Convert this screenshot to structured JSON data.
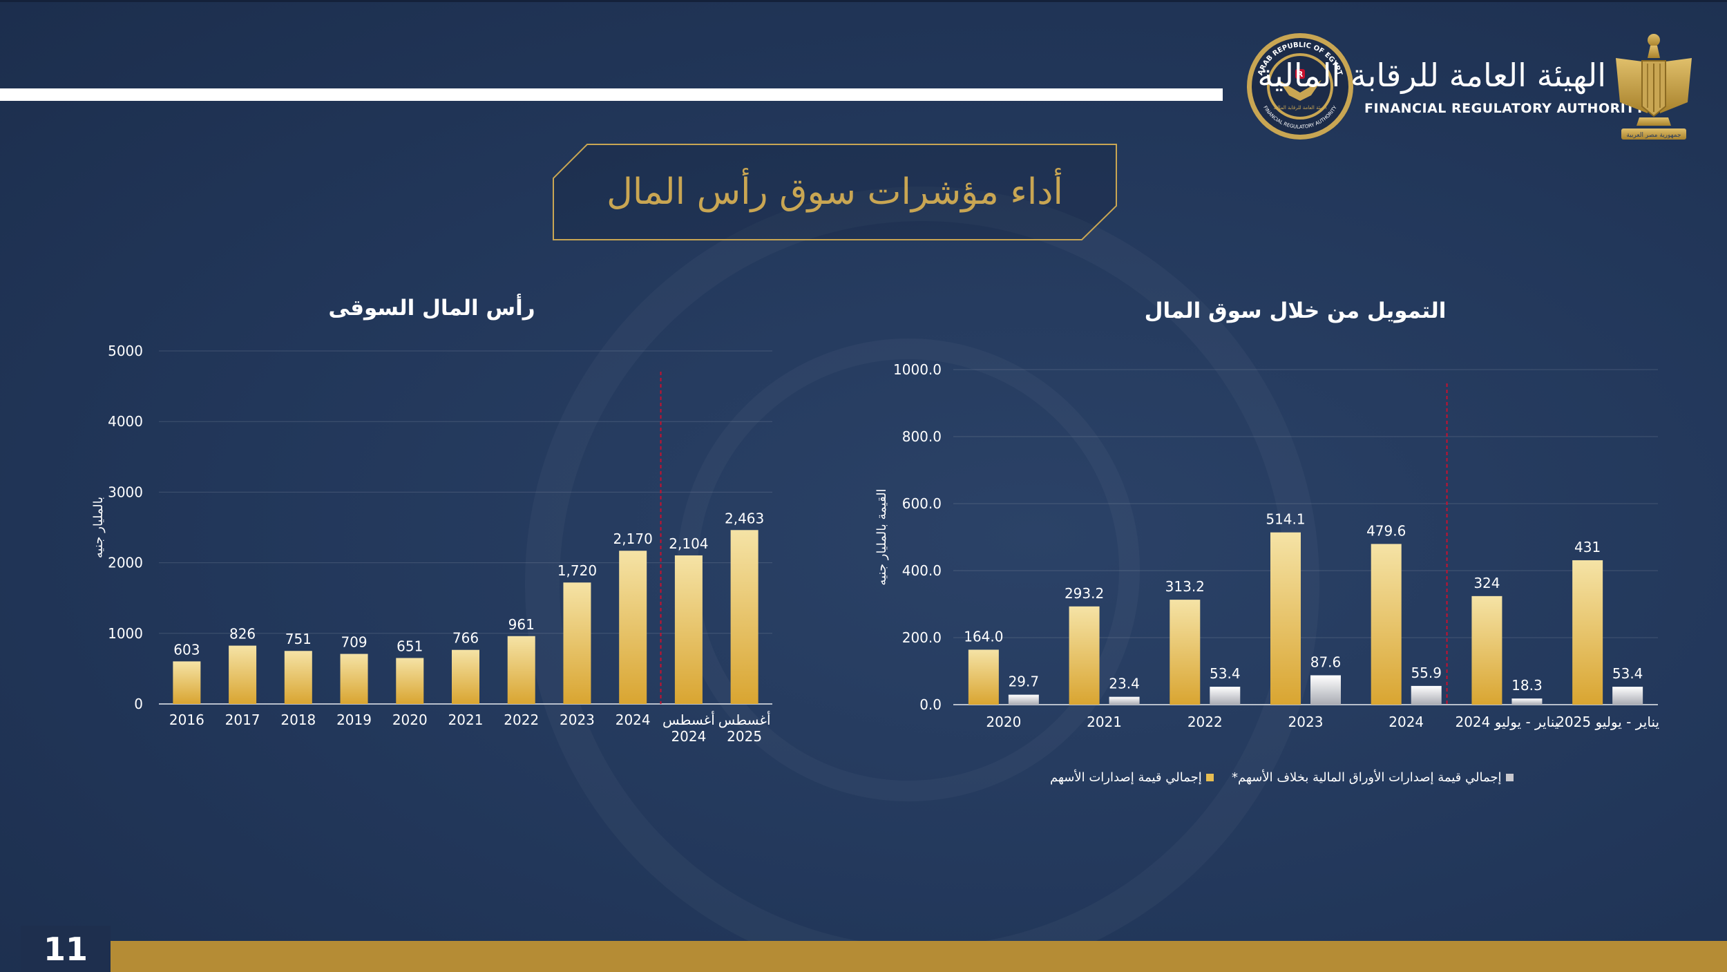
{
  "slide": {
    "title": "أداء مؤشرات سوق رأس المال",
    "page_number": "11"
  },
  "logo": {
    "arabic_name": "الهيئة العامة للرقابة المالية",
    "english_name": "FINANCIAL REGULATORY AUTHORITY",
    "seal_top_text": "ARAB REPUBLIC OF EGYPT",
    "seal_bottom_text": "FINANCIAL REGULATORY AUTHORITY",
    "seal_center_text": "الهيئة العامة للرقابة المالية",
    "eagle_caption": "جمهورية مصر العربية"
  },
  "colors": {
    "background": "#22375a",
    "gold": "#c9a653",
    "bar_gold": "#e6bd52",
    "bar_silver": "#c9c9cf",
    "divider_red": "#c8102e",
    "footer": "#b58c35"
  },
  "chart_data": [
    {
      "type": "bar",
      "title": "رأس المال السوقى",
      "ylabel": "بالمليار جنيه",
      "xlabel": "",
      "ylim": [
        0,
        5000
      ],
      "yticks": [
        "0",
        "1000",
        "2000",
        "3000",
        "4000",
        "5000"
      ],
      "categories": [
        "2016",
        "2017",
        "2018",
        "2019",
        "2020",
        "2021",
        "2022",
        "2023",
        "2024",
        [
          "أغسطس",
          "2024"
        ],
        [
          "أغسطس",
          "2025"
        ]
      ],
      "values": [
        603,
        826,
        751,
        709,
        651,
        766,
        961,
        1720,
        2170,
        2104,
        2463
      ],
      "labels": [
        "603",
        "826",
        "751",
        "709",
        "651",
        "766",
        "961",
        "1,720",
        "2,170",
        "2,104",
        "2,463"
      ],
      "divider_after_category": 9,
      "grid": true
    },
    {
      "type": "bar",
      "title": "التمويل من خلال سوق المال",
      "ylabel": "القيمة بالمليار جنيه",
      "xlabel": "",
      "ylim": [
        0,
        1000
      ],
      "yticks": [
        "0.0",
        "200.0",
        "400.0",
        "600.0",
        "800.0",
        "1000.0"
      ],
      "categories": [
        "2020",
        "2021",
        "2022",
        "2023",
        "2024",
        "يناير - يوليو 2024",
        "يناير - يوليو 2025"
      ],
      "series": [
        {
          "name": "إجمالي قيمة إصدارات الأسهم",
          "values": [
            164.0,
            293.2,
            313.2,
            514.1,
            479.6,
            324,
            431
          ],
          "labels": [
            "164.0",
            "293.2",
            "313.2",
            "514.1",
            "479.6",
            "324",
            "431"
          ]
        },
        {
          "name": "إجمالي قيمة إصدارات الأوراق المالية بخلاف الأسهم*",
          "values": [
            29.7,
            23.4,
            53.4,
            87.6,
            55.9,
            18.3,
            53.4
          ],
          "labels": [
            "29.7",
            "23.4",
            "53.4",
            "87.6",
            "55.9",
            "18.3",
            "53.4"
          ]
        }
      ],
      "divider_after_category": 5,
      "legend_position": "bottom",
      "grid": true
    }
  ]
}
